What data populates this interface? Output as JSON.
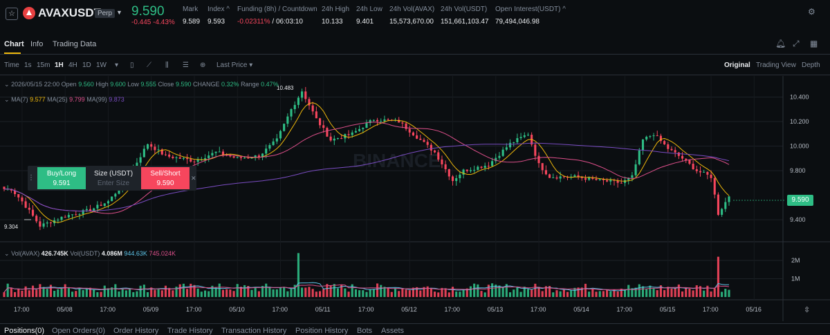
{
  "header": {
    "symbol": "AVAXUSDT",
    "contract_badge": "Perp",
    "last_price": "9.590",
    "price_change": "-0.445 -4.43%",
    "stats": [
      {
        "label": "Mark",
        "value": "9.589"
      },
      {
        "label": "Index ^",
        "value": "9.593"
      },
      {
        "label": "Funding (8h) / Countdown",
        "value_rate": "-0.02311%",
        "value_rest": " / 06:03:10"
      },
      {
        "label": "24h High",
        "value": "10.133"
      },
      {
        "label": "24h Low",
        "value": "9.401"
      },
      {
        "label": "24h Vol(AVAX)",
        "value": "15,573,670.00"
      },
      {
        "label": "24h Vol(USDT)",
        "value": "151,661,103.47"
      },
      {
        "label": "Open Interest(USDT) ^",
        "value": "79,494,046.98"
      }
    ]
  },
  "tabs": [
    "Chart",
    "Info",
    "Trading Data"
  ],
  "toolbar": {
    "intervals": [
      "Time",
      "1s",
      "15m",
      "1H",
      "4H",
      "1D",
      "1W"
    ],
    "active_interval": "1H",
    "price_type": "Last Price",
    "views": [
      "Original",
      "Trading View",
      "Depth"
    ],
    "active_view": "Original"
  },
  "legend": {
    "date": "2026/05/15 22:00",
    "open_label": "Open",
    "open": "9.560",
    "high_label": "High",
    "high": "9.600",
    "low_label": "Low",
    "low": "9.555",
    "close_label": "Close",
    "close": "9.590",
    "change_label": "CHANGE",
    "change": "0.32%",
    "range_label": "Range",
    "range": "0.47%",
    "ma7_label": "MA(7)",
    "ma7": "9.577",
    "ma25_label": "MA(25)",
    "ma25": "9.799",
    "ma99_label": "MA(99)",
    "ma99": "9.873",
    "vol_avax_label": "Vol(AVAX)",
    "vol_avax": "426.745K",
    "vol_usdt_label": "Vol(USDT)",
    "vol_usdt": "4.086M",
    "vol_ma1": "944.63K",
    "vol_ma2": "745.024K"
  },
  "order_widget": {
    "buy_label": "Buy/Long",
    "buy_price": "9.591",
    "size_label": "Size (USDT)",
    "size_placeholder": "Enter Size",
    "sell_label": "Sell/Short",
    "sell_price": "9.590"
  },
  "price_axis": [
    "10.400",
    "10.200",
    "10.000",
    "9.800",
    "9.400"
  ],
  "current_price_tag": "9.590",
  "high_marker": "10.483",
  "low_marker": "9.304",
  "watermark": "BINANCE",
  "volume_axis": [
    "2M",
    "1M"
  ],
  "time_axis": [
    "17:00",
    "05/08",
    "17:00",
    "05/09",
    "17:00",
    "05/10",
    "17:00",
    "05/11",
    "17:00",
    "05/12",
    "17:00",
    "05/13",
    "17:00",
    "05/14",
    "17:00",
    "05/15",
    "17:00",
    "05/16"
  ],
  "bottom_tabs": [
    "Positions(0)",
    "Open Orders(0)",
    "Order History",
    "Trade History",
    "Transaction History",
    "Position History",
    "Bots",
    "Assets"
  ],
  "colors": {
    "up": "#2ebd85",
    "down": "#f6465d",
    "ma7": "#f0b90b",
    "ma25": "#e0508c",
    "ma99": "#7b4dc4",
    "volma1": "#5ec4e8",
    "volma2": "#e0508c",
    "accent": "#f0b90b"
  },
  "chart_data": {
    "type": "candlestick",
    "interval": "1H",
    "anchors": [
      {
        "x": "05/07 14:00",
        "close": 9.65
      },
      {
        "x": "05/07 17:00",
        "close": 9.55
      },
      {
        "x": "05/07 22:00",
        "close": 9.35
      },
      {
        "x": "05/08 05:00",
        "close": 9.43
      },
      {
        "x": "05/08 12:00",
        "close": 9.48
      },
      {
        "x": "05/08 17:00",
        "close": 9.55
      },
      {
        "x": "05/08 22:00",
        "close": 9.72
      },
      {
        "x": "05/09 04:00",
        "close": 10.02
      },
      {
        "x": "05/09 09:00",
        "close": 9.92
      },
      {
        "x": "05/09 17:00",
        "close": 9.88
      },
      {
        "x": "05/09 23:00",
        "close": 9.95
      },
      {
        "x": "05/10 05:00",
        "close": 9.9
      },
      {
        "x": "05/10 11:00",
        "close": 9.92
      },
      {
        "x": "05/10 16:00",
        "close": 10.05
      },
      {
        "x": "05/10 20:00",
        "close": 10.3
      },
      {
        "x": "05/10 23:00",
        "close": 10.45
      },
      {
        "x": "05/11 03:00",
        "close": 10.22
      },
      {
        "x": "05/11 07:00",
        "close": 10.05
      },
      {
        "x": "05/11 13:00",
        "close": 10.1
      },
      {
        "x": "05/11 19:00",
        "close": 10.22
      },
      {
        "x": "05/12 02:00",
        "close": 10.2
      },
      {
        "x": "05/12 08:00",
        "close": 10.05
      },
      {
        "x": "05/12 12:00",
        "close": 9.95
      },
      {
        "x": "05/12 17:00",
        "close": 9.72
      },
      {
        "x": "05/12 20:00",
        "close": 9.8
      },
      {
        "x": "05/13 03:00",
        "close": 9.85
      },
      {
        "x": "05/13 09:00",
        "close": 10.02
      },
      {
        "x": "05/13 14:00",
        "close": 10.1
      },
      {
        "x": "05/13 17:00",
        "close": 9.85
      },
      {
        "x": "05/13 20:00",
        "close": 9.75
      },
      {
        "x": "05/14 03:00",
        "close": 9.75
      },
      {
        "x": "05/14 10:00",
        "close": 9.72
      },
      {
        "x": "05/14 16:00",
        "close": 9.7
      },
      {
        "x": "05/14 19:00",
        "close": 9.75
      },
      {
        "x": "05/14 22:00",
        "close": 10.05
      },
      {
        "x": "05/15 01:00",
        "close": 10.1
      },
      {
        "x": "05/15 05:00",
        "close": 9.98
      },
      {
        "x": "05/15 09:00",
        "close": 9.9
      },
      {
        "x": "05/15 13:00",
        "close": 9.8
      },
      {
        "x": "05/15 17:00",
        "close": 9.75
      },
      {
        "x": "05/15 19:00",
        "close": 9.45
      },
      {
        "x": "05/15 22:00",
        "close": 9.59
      }
    ],
    "high": 10.483,
    "low": 9.304,
    "last": 9.59,
    "y_ticks": [
      10.4,
      10.2,
      10.0,
      9.8,
      9.4
    ],
    "volume_spikes": [
      {
        "x": "05/10 22:00",
        "volume": 2400000
      },
      {
        "x": "05/15 19:00",
        "volume": 2200000
      }
    ]
  }
}
